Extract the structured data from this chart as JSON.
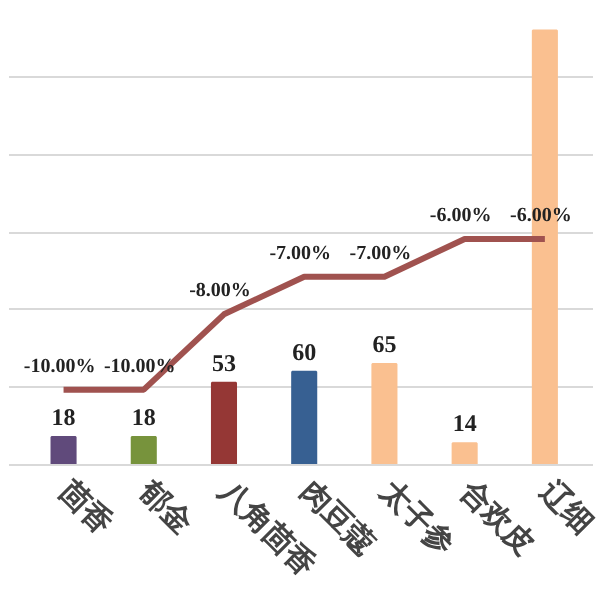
{
  "chart_data": {
    "type": "bar",
    "categories": [
      "茴香",
      "郁金",
      "八角茴香",
      "肉豆蔻",
      "太子参",
      "合欢皮",
      "辽细"
    ],
    "series": [
      {
        "colors": [
          "#604a7b",
          "#77933c",
          "#953735",
          "#376092",
          "#fac090",
          "#fac090",
          "#fac090"
        ],
        "values": [
          18,
          18,
          53,
          60,
          65,
          14,
          280
        ],
        "value_labels": [
          "18",
          "18",
          "53",
          "60",
          "65",
          "14",
          null
        ]
      },
      {
        "type": "line",
        "axis": "y2",
        "color": "#a0524f",
        "values": [
          -10,
          -10,
          -8,
          -7,
          -7,
          -6,
          -6
        ],
        "value_labels": [
          "-10.00%",
          "-10.00%",
          "-8.00%",
          "-7.00%",
          "-7.00%",
          "-6.00%",
          "-6.00%"
        ]
      }
    ],
    "grid": "y",
    "tick_labels": "x"
  }
}
